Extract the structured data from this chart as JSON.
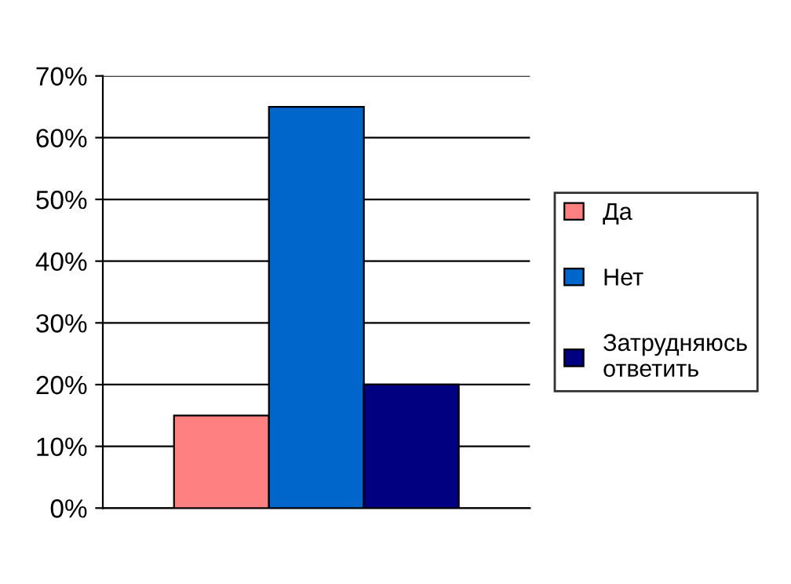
{
  "chart_data": {
    "type": "bar",
    "categories": [
      null
    ],
    "series": [
      {
        "name": "Да",
        "color": "#ff8080",
        "values": [
          15
        ]
      },
      {
        "name": "Нет",
        "color": "#0066cc",
        "values": [
          65
        ]
      },
      {
        "name": "Затрудняюсь\nответить",
        "color": "#000080",
        "values": [
          20
        ]
      }
    ],
    "ylim": [
      0,
      70
    ],
    "yticks": [
      {
        "value": 0,
        "label": "0%"
      },
      {
        "value": 10,
        "label": "10%"
      },
      {
        "value": 20,
        "label": "20%"
      },
      {
        "value": 30,
        "label": "30%"
      },
      {
        "value": 40,
        "label": "40%"
      },
      {
        "value": 50,
        "label": "50%"
      },
      {
        "value": 60,
        "label": "60%"
      },
      {
        "value": 70,
        "label": "70%"
      }
    ],
    "grid": "y",
    "legend": "right"
  }
}
